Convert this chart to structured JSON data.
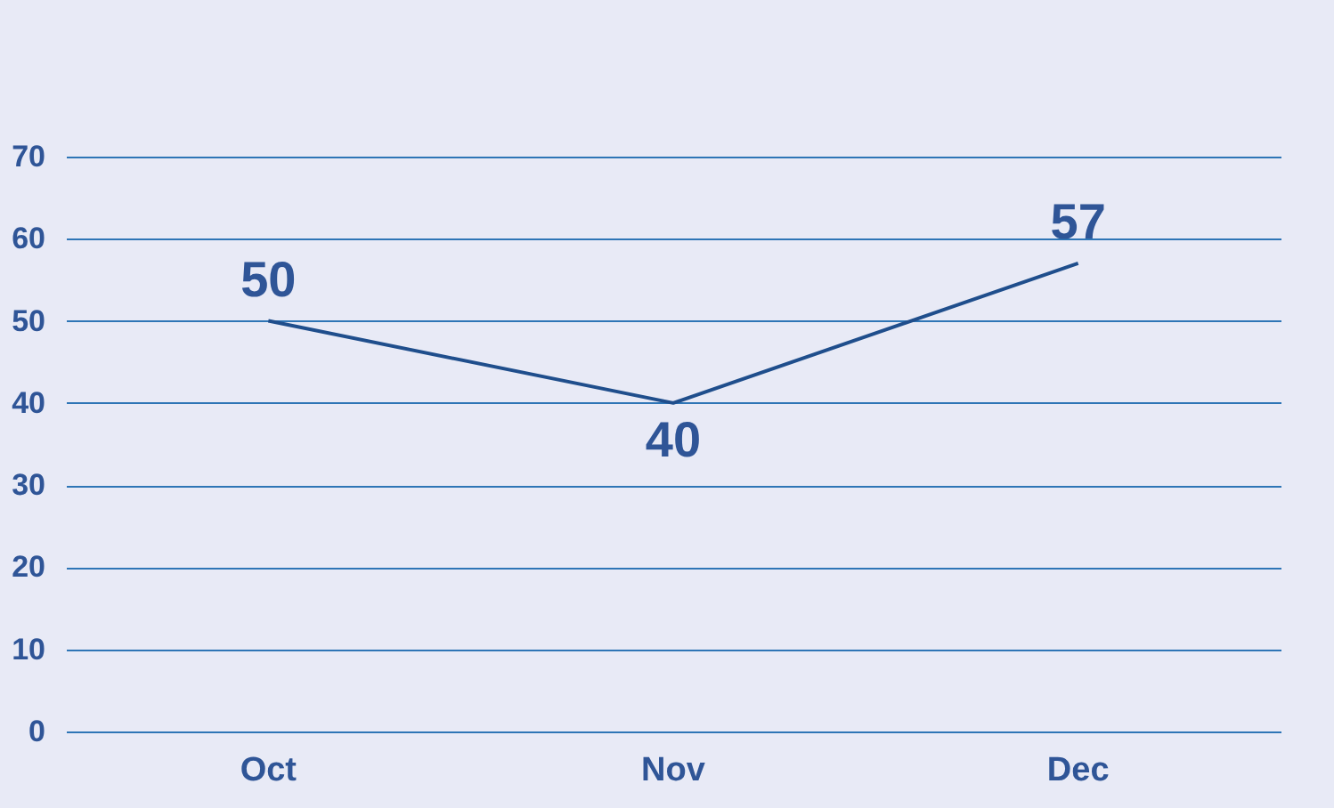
{
  "chart_data": {
    "type": "line",
    "categories": [
      "Oct",
      "Nov",
      "Dec"
    ],
    "series": [
      {
        "color": "#1f4e8c",
        "values": [
          50,
          40,
          57
        ]
      }
    ],
    "ylim": [
      0,
      70
    ],
    "yticks": [
      0,
      10,
      20,
      30,
      40,
      50,
      60,
      70
    ],
    "grid": "y",
    "data_labels": true,
    "marker": "none",
    "line_style": "solid",
    "legend": false
  }
}
